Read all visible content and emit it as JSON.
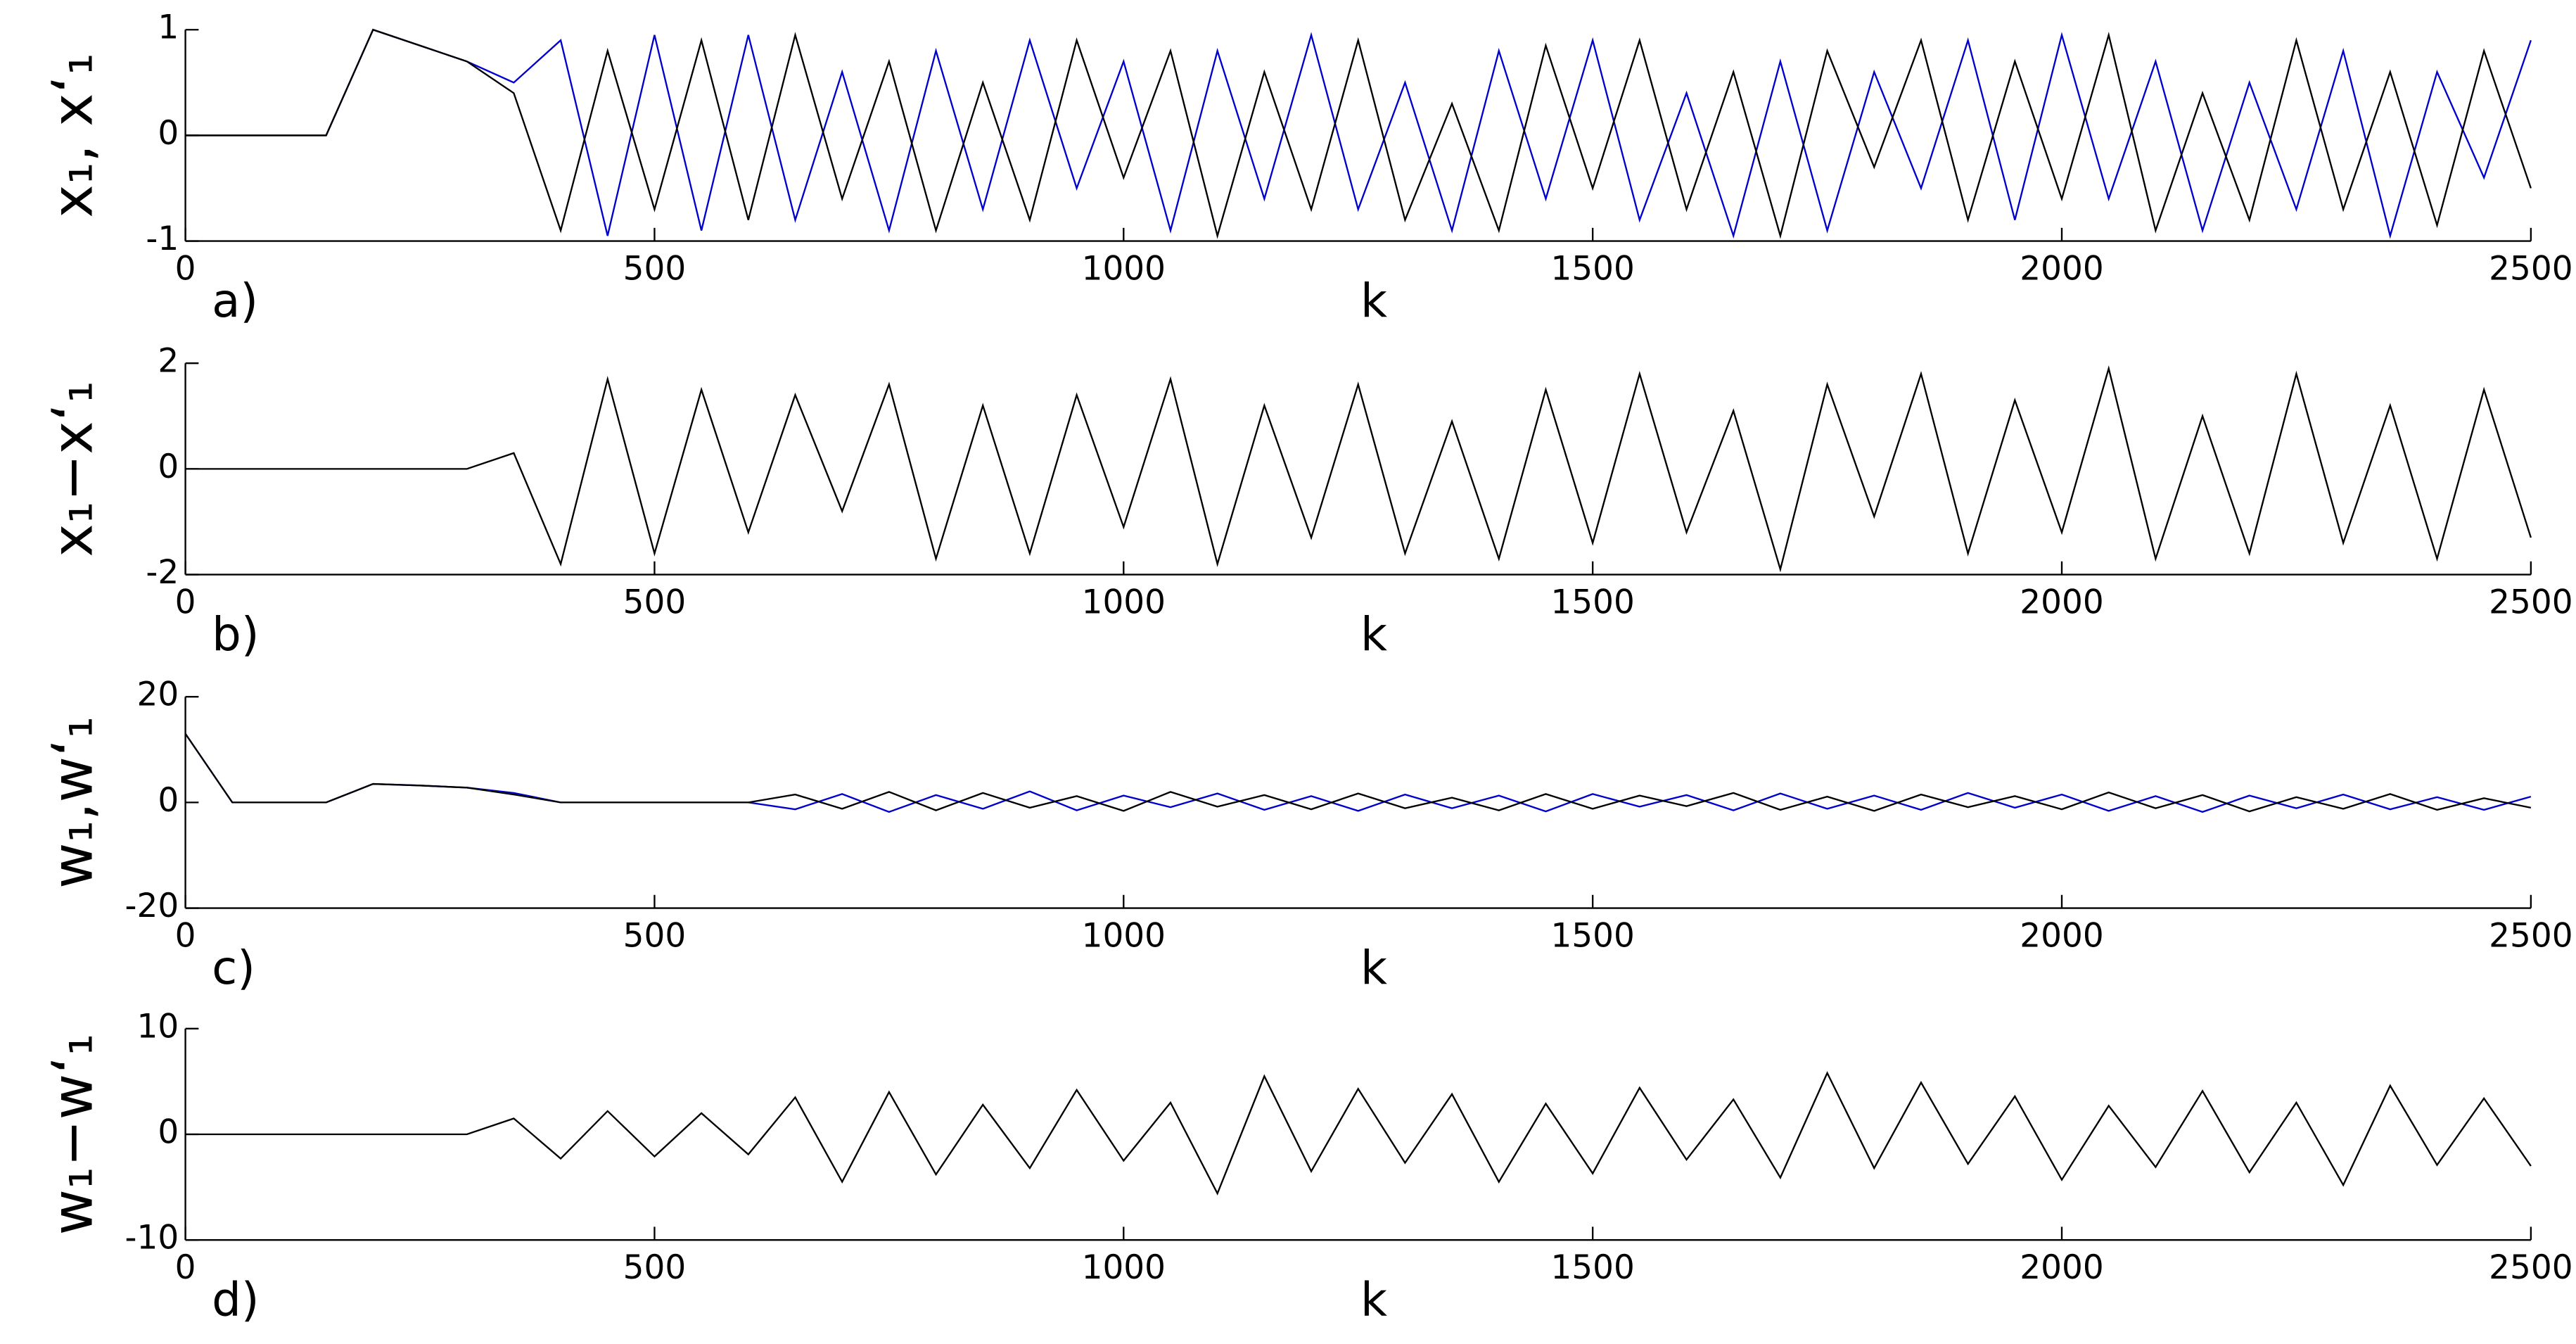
{
  "chart_data": [
    {
      "type": "line",
      "label": "a)",
      "xlabel": "k",
      "ylabel": "x₁, x‘₁",
      "x": [
        0,
        50,
        100,
        150,
        200,
        250,
        300,
        350,
        400,
        450,
        500,
        550,
        600,
        650,
        700,
        750,
        800,
        850,
        900,
        950,
        1000,
        1050,
        1100,
        1150,
        1200,
        1250,
        1300,
        1350,
        1400,
        1450,
        1500,
        1550,
        1600,
        1650,
        1700,
        1750,
        1800,
        1850,
        1900,
        1950,
        2000,
        2050,
        2100,
        2150,
        2200,
        2250,
        2300,
        2350,
        2400,
        2450,
        2500
      ],
      "series": [
        {
          "color": "#0000cc",
          "values": [
            0,
            0,
            0,
            0,
            1,
            0.85,
            0.7,
            0.5,
            0.9,
            -0.95,
            0.95,
            -0.9,
            0.95,
            -0.8,
            0.6,
            -0.9,
            0.8,
            -0.7,
            0.9,
            -0.5,
            0.7,
            -0.9,
            0.8,
            -0.6,
            0.95,
            -0.7,
            0.5,
            -0.9,
            0.8,
            -0.6,
            0.9,
            -0.8,
            0.4,
            -0.95,
            0.7,
            -0.9,
            0.6,
            -0.5,
            0.9,
            -0.8,
            0.95,
            -0.6,
            0.7,
            -0.9,
            0.5,
            -0.7,
            0.8,
            -0.95,
            0.6,
            -0.4,
            0.9
          ]
        },
        {
          "color": "#000000",
          "values": [
            0,
            0,
            0,
            0,
            1,
            0.85,
            0.7,
            0.4,
            -0.9,
            0.8,
            -0.7,
            0.9,
            -0.8,
            0.95,
            -0.6,
            0.7,
            -0.9,
            0.5,
            -0.8,
            0.9,
            -0.4,
            0.8,
            -0.95,
            0.6,
            -0.7,
            0.9,
            -0.8,
            0.3,
            -0.9,
            0.85,
            -0.5,
            0.9,
            -0.7,
            0.6,
            -0.95,
            0.8,
            -0.3,
            0.9,
            -0.8,
            0.7,
            -0.6,
            0.95,
            -0.9,
            0.4,
            -0.8,
            0.9,
            -0.7,
            0.6,
            -0.85,
            0.8,
            -0.5
          ]
        }
      ],
      "xlim": [
        0,
        2500
      ],
      "xticks": [
        0,
        500,
        1000,
        1500,
        2000,
        2500
      ],
      "ylim": [
        -1,
        1
      ],
      "yticks": [
        -1,
        0,
        1
      ]
    },
    {
      "type": "line",
      "label": "b)",
      "xlabel": "k",
      "ylabel": "x₁−x‘₁",
      "x": [
        0,
        50,
        100,
        150,
        200,
        250,
        300,
        350,
        400,
        450,
        500,
        550,
        600,
        650,
        700,
        750,
        800,
        850,
        900,
        950,
        1000,
        1050,
        1100,
        1150,
        1200,
        1250,
        1300,
        1350,
        1400,
        1450,
        1500,
        1550,
        1600,
        1650,
        1700,
        1750,
        1800,
        1850,
        1900,
        1950,
        2000,
        2050,
        2100,
        2150,
        2200,
        2250,
        2300,
        2350,
        2400,
        2450,
        2500
      ],
      "series": [
        {
          "color": "#000000",
          "values": [
            0,
            0,
            0,
            0,
            0,
            0,
            0,
            0.3,
            -1.8,
            1.7,
            -1.6,
            1.5,
            -1.2,
            1.4,
            -0.8,
            1.6,
            -1.7,
            1.2,
            -1.6,
            1.4,
            -1.1,
            1.7,
            -1.8,
            1.2,
            -1.3,
            1.6,
            -1.6,
            0.9,
            -1.7,
            1.5,
            -1.4,
            1.8,
            -1.2,
            1.1,
            -1.9,
            1.6,
            -0.9,
            1.8,
            -1.6,
            1.3,
            -1.2,
            1.9,
            -1.7,
            1.0,
            -1.6,
            1.8,
            -1.4,
            1.2,
            -1.7,
            1.5,
            -1.3
          ]
        }
      ],
      "xlim": [
        0,
        2500
      ],
      "xticks": [
        0,
        500,
        1000,
        1500,
        2000,
        2500
      ],
      "ylim": [
        -2,
        2
      ],
      "yticks": [
        -2,
        0,
        2
      ]
    },
    {
      "type": "line",
      "label": "c)",
      "xlabel": "k",
      "ylabel": "w₁,w‘₁",
      "x": [
        0,
        50,
        100,
        150,
        200,
        250,
        300,
        350,
        400,
        450,
        500,
        550,
        600,
        650,
        700,
        750,
        800,
        850,
        900,
        950,
        1000,
        1050,
        1100,
        1150,
        1200,
        1250,
        1300,
        1350,
        1400,
        1450,
        1500,
        1550,
        1600,
        1650,
        1700,
        1750,
        1800,
        1850,
        1900,
        1950,
        2000,
        2050,
        2100,
        2150,
        2200,
        2250,
        2300,
        2350,
        2400,
        2450,
        2500
      ],
      "series": [
        {
          "color": "#0000cc",
          "values": [
            13,
            0,
            0,
            0,
            3.5,
            3.2,
            2.8,
            1.8,
            0,
            0,
            0,
            0,
            0,
            -1.3,
            1.6,
            -1.8,
            1.4,
            -1.2,
            2.1,
            -1.5,
            1.3,
            -0.9,
            1.7,
            -1.4,
            1.2,
            -1.6,
            1.5,
            -1.1,
            1.3,
            -1.7,
            1.6,
            -0.8,
            1.4,
            -1.5,
            1.7,
            -1.2,
            1.3,
            -1.4,
            1.8,
            -1.0,
            1.5,
            -1.6,
            1.2,
            -1.8,
            1.3,
            -1.1,
            1.5,
            -1.3,
            1.0,
            -1.4,
            1.1
          ]
        },
        {
          "color": "#000000",
          "values": [
            13,
            0,
            0,
            0,
            3.5,
            3.2,
            2.8,
            1.5,
            0,
            0,
            0,
            0,
            0,
            1.5,
            -1.2,
            2,
            -1.5,
            1.8,
            -1,
            1.2,
            -1.6,
            2,
            -0.8,
            1.4,
            -1.3,
            1.7,
            -1.1,
            0.9,
            -1.5,
            1.6,
            -1.2,
            1.3,
            -0.7,
            1.8,
            -1.4,
            1.1,
            -1.6,
            1.5,
            -0.9,
            1.2,
            -1.3,
            1.9,
            -1.1,
            1.4,
            -1.7,
            1.0,
            -1.2,
            1.6,
            -1.4,
            0.8,
            -1.0
          ]
        }
      ],
      "xlim": [
        0,
        2500
      ],
      "xticks": [
        0,
        500,
        1000,
        1500,
        2000,
        2500
      ],
      "ylim": [
        -20,
        20
      ],
      "yticks": [
        -20,
        0,
        20
      ]
    },
    {
      "type": "line",
      "label": "d)",
      "xlabel": "k",
      "ylabel": "w₁−w‘₁",
      "x": [
        0,
        50,
        100,
        150,
        200,
        250,
        300,
        350,
        400,
        450,
        500,
        550,
        600,
        650,
        700,
        750,
        800,
        850,
        900,
        950,
        1000,
        1050,
        1100,
        1150,
        1200,
        1250,
        1300,
        1350,
        1400,
        1450,
        1500,
        1550,
        1600,
        1650,
        1700,
        1750,
        1800,
        1850,
        1900,
        1950,
        2000,
        2050,
        2100,
        2150,
        2200,
        2250,
        2300,
        2350,
        2400,
        2450,
        2500
      ],
      "series": [
        {
          "color": "#000000",
          "values": [
            0,
            0,
            0,
            0,
            0,
            0,
            0,
            1.5,
            -2.3,
            2.2,
            -2.1,
            2.0,
            -1.9,
            3.5,
            -4.5,
            4,
            -3.8,
            2.8,
            -3.2,
            4.2,
            -2.5,
            3,
            -5.6,
            5.5,
            -3.5,
            4.3,
            -2.7,
            3.8,
            -4.5,
            2.9,
            -3.7,
            4.4,
            -2.4,
            3.3,
            -4.1,
            5.8,
            -3.2,
            4.9,
            -2.8,
            3.6,
            -4.3,
            2.7,
            -3.1,
            4.1,
            -3.6,
            3.0,
            -4.8,
            4.6,
            -2.9,
            3.4,
            -3.0
          ]
        }
      ],
      "xlim": [
        0,
        2500
      ],
      "xticks": [
        0,
        500,
        1000,
        1500,
        2000,
        2500
      ],
      "ylim": [
        -10,
        10
      ],
      "yticks": [
        -10,
        0,
        10
      ]
    }
  ]
}
